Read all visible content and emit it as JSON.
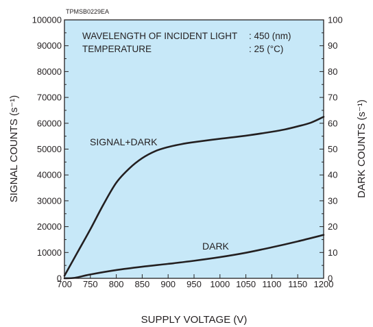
{
  "code": "TPMSB0229EA",
  "conditions": {
    "line1_label": "WAVELENGTH OF INCIDENT LIGHT",
    "line1_value": ": 450 (nm)",
    "line2_label": "TEMPERATURE",
    "line2_value": ": 25 (°C)"
  },
  "colors": {
    "plot_bg": "#c7e8f8",
    "line": "#231f20",
    "frame": "#231f20"
  },
  "chart_data": {
    "type": "line",
    "title": "",
    "xlabel": "SUPPLY VOLTAGE (V)",
    "ylabel": "SIGNAL COUNTS (s⁻¹)",
    "ylabel_right": "DARK COUNTS (s⁻¹)",
    "xlim": [
      700,
      1200
    ],
    "ylim": [
      0,
      100000
    ],
    "ylim_right": [
      0,
      100
    ],
    "x_ticks": [
      "700",
      "750",
      "800",
      "850",
      "900",
      "950",
      "1000",
      "1050",
      "1100",
      "1150",
      "1200"
    ],
    "y_ticks": [
      "0",
      "10000",
      "20000",
      "30000",
      "40000",
      "50000",
      "60000",
      "70000",
      "80000",
      "90000",
      "100000"
    ],
    "y_ticks_right": [
      "0",
      "10",
      "20",
      "30",
      "40",
      "50",
      "60",
      "70",
      "80",
      "90",
      "100"
    ],
    "grid": false,
    "series": [
      {
        "name": "SIGNAL+DARK",
        "axis": "left",
        "x": [
          700,
          725,
          750,
          775,
          800,
          825,
          850,
          875,
          900,
          925,
          950,
          1000,
          1050,
          1100,
          1125,
          1150,
          1175,
          1200
        ],
        "y": [
          1000,
          10000,
          19000,
          28500,
          37000,
          42500,
          46500,
          49200,
          50800,
          51900,
          52700,
          54000,
          55200,
          56700,
          57600,
          58800,
          60200,
          62500
        ]
      },
      {
        "name": "DARK",
        "axis": "right",
        "x": [
          700,
          720,
          750,
          800,
          850,
          900,
          950,
          1000,
          1050,
          1100,
          1150,
          1200
        ],
        "y": [
          0,
          0.2,
          1.5,
          3.2,
          4.5,
          5.6,
          6.8,
          8.2,
          9.9,
          12.0,
          14.3,
          16.8
        ]
      }
    ]
  }
}
